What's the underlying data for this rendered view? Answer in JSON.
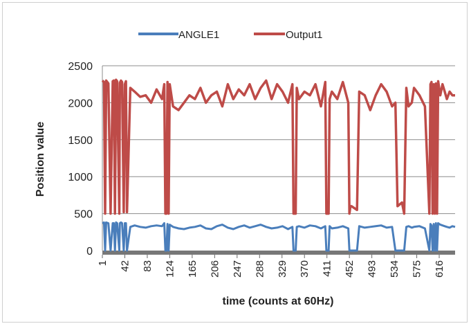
{
  "chart_data": {
    "type": "line",
    "xlabel": "time (counts at 60Hz)",
    "ylabel": "Position value",
    "ylim": [
      0,
      2500
    ],
    "yticks": [
      0,
      500,
      1000,
      1500,
      2000,
      2500
    ],
    "xlim": [
      1,
      645
    ],
    "xticks": [
      1,
      42,
      83,
      124,
      165,
      206,
      247,
      288,
      329,
      370,
      411,
      452,
      493,
      534,
      575,
      616
    ],
    "grid": "horizontal",
    "legend": "top-center",
    "colors": {
      "ANGLE1": "#4a7ebb",
      "Output1": "#be4b48"
    },
    "series": [
      {
        "name": "ANGLE1",
        "x": [
          1,
          4,
          6,
          8,
          12,
          16,
          20,
          22,
          24,
          26,
          28,
          32,
          33,
          35,
          37,
          40,
          42,
          44,
          46,
          52,
          60,
          70,
          80,
          90,
          100,
          110,
          114,
          116,
          118,
          120,
          122,
          124,
          130,
          140,
          150,
          160,
          170,
          180,
          190,
          200,
          210,
          220,
          230,
          240,
          250,
          260,
          270,
          280,
          290,
          300,
          310,
          320,
          330,
          340,
          348,
          350,
          352,
          354,
          356,
          360,
          370,
          380,
          390,
          400,
          408,
          410,
          412,
          414,
          416,
          420,
          430,
          440,
          450,
          452,
          454,
          456,
          466,
          470,
          480,
          490,
          500,
          510,
          520,
          530,
          536,
          540,
          548,
          552,
          556,
          560,
          566,
          570,
          580,
          590,
          598,
          600,
          602,
          604,
          606,
          608,
          610,
          612,
          614,
          618,
          622,
          626,
          630,
          635,
          640,
          645
        ],
        "y": [
          370,
          380,
          0,
          380,
          370,
          0,
          370,
          370,
          0,
          380,
          370,
          0,
          370,
          380,
          370,
          0,
          370,
          370,
          0,
          320,
          340,
          320,
          310,
          330,
          340,
          330,
          370,
          0,
          0,
          360,
          0,
          350,
          320,
          300,
          290,
          310,
          320,
          340,
          300,
          290,
          330,
          350,
          310,
          290,
          320,
          340,
          310,
          330,
          350,
          320,
          300,
          310,
          330,
          290,
          320,
          0,
          0,
          0,
          320,
          330,
          310,
          340,
          330,
          300,
          330,
          0,
          0,
          0,
          330,
          300,
          310,
          330,
          300,
          0,
          0,
          0,
          0,
          330,
          310,
          320,
          330,
          340,
          310,
          320,
          0,
          0,
          0,
          0,
          320,
          330,
          310,
          320,
          330,
          300,
          0,
          360,
          340,
          0,
          360,
          0,
          370,
          0,
          370,
          350,
          340,
          330,
          320,
          310,
          330,
          320
        ]
      },
      {
        "name": "Output1",
        "x": [
          1,
          4,
          6,
          8,
          12,
          16,
          20,
          22,
          24,
          26,
          28,
          32,
          33,
          35,
          37,
          40,
          42,
          44,
          46,
          52,
          60,
          70,
          80,
          90,
          100,
          110,
          114,
          116,
          118,
          120,
          122,
          124,
          130,
          140,
          150,
          160,
          170,
          180,
          190,
          200,
          210,
          220,
          230,
          240,
          250,
          260,
          270,
          280,
          290,
          300,
          310,
          320,
          330,
          340,
          348,
          350,
          352,
          354,
          356,
          360,
          370,
          380,
          390,
          400,
          408,
          410,
          412,
          414,
          416,
          420,
          430,
          440,
          450,
          452,
          454,
          456,
          466,
          470,
          480,
          490,
          500,
          510,
          520,
          530,
          536,
          540,
          548,
          552,
          556,
          560,
          566,
          570,
          580,
          590,
          598,
          600,
          602,
          604,
          606,
          608,
          610,
          612,
          614,
          618,
          622,
          626,
          630,
          635,
          640,
          645
        ],
        "y": [
          2300,
          2280,
          500,
          2300,
          2260,
          500,
          2290,
          2300,
          500,
          2310,
          2290,
          500,
          2270,
          2300,
          2280,
          520,
          2250,
          2290,
          520,
          2200,
          2150,
          2080,
          2100,
          2000,
          2180,
          2050,
          2250,
          500,
          500,
          2280,
          500,
          2250,
          1950,
          1900,
          2000,
          2100,
          2050,
          2200,
          2000,
          2100,
          2150,
          1950,
          2250,
          2050,
          2180,
          2100,
          2250,
          2050,
          2200,
          2300,
          2050,
          2250,
          2150,
          2000,
          2250,
          500,
          500,
          500,
          2200,
          2050,
          2150,
          2100,
          2250,
          1950,
          2280,
          500,
          500,
          500,
          2050,
          2150,
          2050,
          2280,
          2000,
          500,
          600,
          600,
          550,
          2150,
          2100,
          1900,
          2100,
          2250,
          2150,
          1950,
          2000,
          600,
          650,
          500,
          2200,
          1950,
          2000,
          2200,
          2100,
          1950,
          500,
          2250,
          2280,
          500,
          2250,
          500,
          2260,
          500,
          2290,
          2100,
          2250,
          2150,
          2050,
          2150,
          2100,
          2100
        ]
      }
    ]
  }
}
